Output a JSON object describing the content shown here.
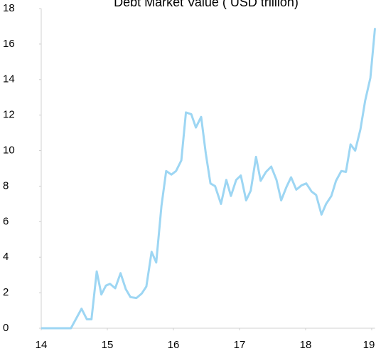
{
  "chart_data": {
    "type": "line",
    "title": "Debt Market Value ( USD trillion)",
    "x": [
      14.0,
      14.13,
      14.29,
      14.45,
      14.61,
      14.69,
      14.76,
      14.84,
      14.91,
      14.98,
      15.04,
      15.12,
      15.2,
      15.28,
      15.35,
      15.44,
      15.52,
      15.59,
      15.67,
      15.74,
      15.82,
      15.89,
      15.97,
      16.04,
      16.12,
      16.19,
      16.27,
      16.34,
      16.42,
      16.49,
      16.56,
      16.63,
      16.72,
      16.8,
      16.87,
      16.95,
      17.02,
      17.1,
      17.17,
      17.25,
      17.32,
      17.4,
      17.48,
      17.56,
      17.63,
      17.71,
      17.78,
      17.86,
      17.94,
      18.01,
      18.09,
      18.16,
      18.24,
      18.31,
      18.39,
      18.46,
      18.54,
      18.61,
      18.68,
      18.75,
      18.83,
      18.9,
      18.98,
      19.05
    ],
    "series": [
      {
        "name": "Debt Market Value",
        "color": "#9dd6f3",
        "values": [
          0,
          0,
          0,
          0,
          1.1,
          0.5,
          0.5,
          3.2,
          1.9,
          2.4,
          2.5,
          2.25,
          3.1,
          2.2,
          1.75,
          1.7,
          1.95,
          2.35,
          4.3,
          3.7,
          6.9,
          8.85,
          8.65,
          8.85,
          9.45,
          12.15,
          12.05,
          11.3,
          11.9,
          9.85,
          8.15,
          8.0,
          7.0,
          8.35,
          7.45,
          8.35,
          8.6,
          7.2,
          7.75,
          9.65,
          8.3,
          8.8,
          9.1,
          8.35,
          7.2,
          7.95,
          8.5,
          7.8,
          8.05,
          8.15,
          7.7,
          7.5,
          6.4,
          7.0,
          7.45,
          8.3,
          8.85,
          8.8,
          10.35,
          10.0,
          11.2,
          12.8,
          14.1,
          16.9
        ]
      }
    ],
    "xlim": [
      14,
      19.05
    ],
    "xticks": [
      14,
      15,
      16,
      17,
      18,
      19
    ],
    "ylim": [
      0,
      18
    ],
    "yticks": [
      0,
      2,
      4,
      6,
      8,
      10,
      12,
      14,
      16,
      18
    ],
    "grid": false
  }
}
